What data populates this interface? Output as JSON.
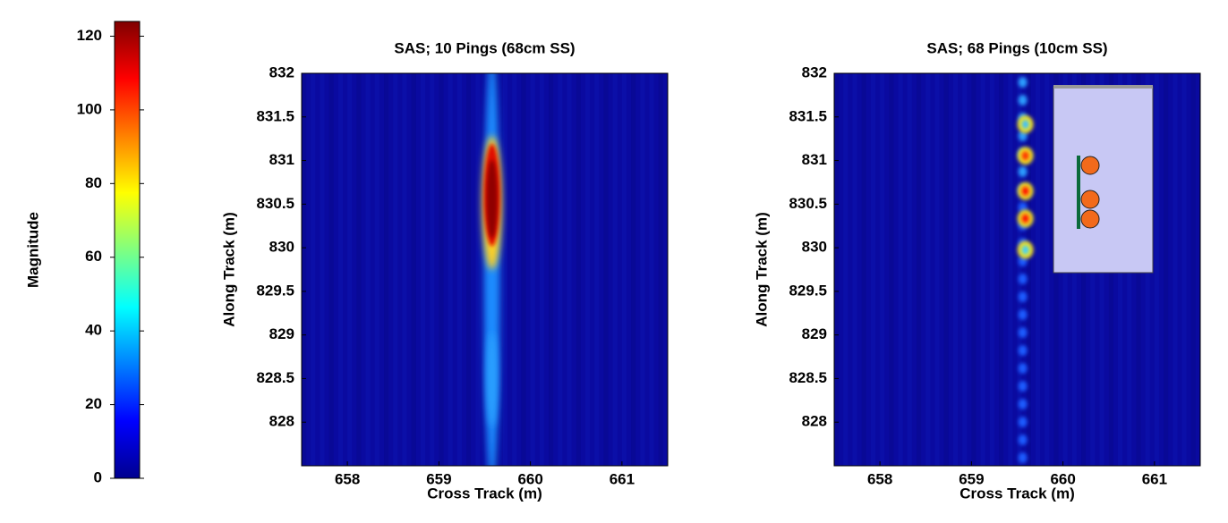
{
  "chart_data": [
    {
      "type": "colorbar",
      "ylabel": "Magnitude",
      "colormap": "jet",
      "ylim": [
        0,
        124
      ],
      "yticks": [
        0,
        20,
        40,
        60,
        80,
        100,
        120
      ]
    },
    {
      "type": "heatmap",
      "title": "SAS; 10 Pings (68cm SS)",
      "xlabel": "Cross Track (m)",
      "ylabel": "Along Track (m)",
      "xlim": [
        657.5,
        661.5
      ],
      "ylim": [
        827.5,
        832
      ],
      "xticks": [
        658,
        659,
        660,
        661
      ],
      "yticks": [
        828,
        828.5,
        829,
        829.5,
        830,
        830.5,
        831,
        831.5,
        832
      ]
    },
    {
      "type": "heatmap",
      "title": "SAS; 68 Pings (10cm SS)",
      "xlabel": "Cross Track (m)",
      "ylabel": "Along Track (m)",
      "xlim": [
        657.5,
        661.5
      ],
      "ylim": [
        827.5,
        832
      ],
      "xticks": [
        658,
        659,
        660,
        661
      ],
      "yticks": [
        828,
        828.5,
        829,
        829.5,
        830,
        830.5,
        831,
        831.5,
        832
      ]
    }
  ]
}
